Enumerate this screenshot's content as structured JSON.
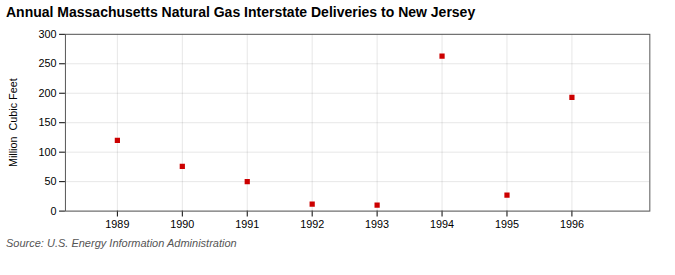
{
  "chart_data": {
    "type": "scatter",
    "title": "Annual Massachusetts Natural Gas Interstate Deliveries to New Jersey",
    "y_label": "Million  Cubic Feet",
    "annotation": "Source: U.S. Energy Information Administration",
    "x": [
      1989,
      1990,
      1991,
      1992,
      1993,
      1994,
      1995,
      1996
    ],
    "values": [
      120,
      76,
      50,
      12,
      10,
      263,
      27,
      193
    ],
    "color": "#cc0000",
    "marker": "square",
    "xlim": [
      1988.2,
      1997.2
    ],
    "xticks": [
      1989,
      1990,
      1991,
      1992,
      1993,
      1994,
      1995,
      1996
    ],
    "ylim": [
      0,
      300
    ],
    "yticks": [
      0,
      50,
      100,
      150,
      200,
      250,
      300
    ],
    "grid": true
  }
}
